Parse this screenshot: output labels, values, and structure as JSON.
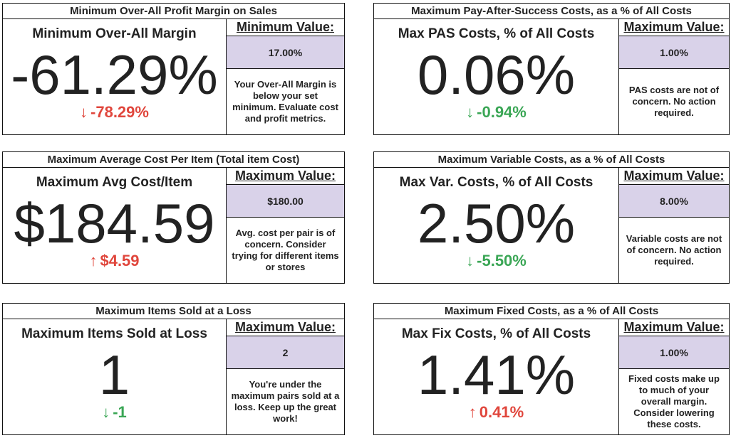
{
  "cards": [
    {
      "header": "Minimum Over-All Profit Margin on Sales",
      "metric": "Minimum Over-All Margin",
      "value": "-61.29%",
      "arrow": "↓",
      "delta": "-78.29%",
      "delta_color": "#e0463c",
      "limit_label": "Minimum Value:",
      "limit": "17.00%",
      "message": "Your Over-All Margin is below your set minimum. Evaluate cost and profit metrics."
    },
    {
      "header": "Maximum Pay-After-Success Costs, as a % of All Costs",
      "metric": "Max PAS Costs, % of All Costs",
      "value": "0.06%",
      "arrow": "↓",
      "delta": "-0.94%",
      "delta_color": "#3aa655",
      "limit_label": "Maximum Value:",
      "limit": "1.00%",
      "message": "PAS costs are not of concern. No action required."
    },
    {
      "header": "Maximum Average Cost Per Item (Total item Cost)",
      "metric": "Maximum Avg Cost/Item",
      "value": "$184.59",
      "arrow": "↑",
      "delta": "$4.59",
      "delta_color": "#e0463c",
      "limit_label": "Maximum Value:",
      "limit": "$180.00",
      "message": "Avg. cost per pair is of concern. Consider trying for different items or stores"
    },
    {
      "header": "Maximum Variable Costs, as a % of All Costs",
      "metric": "Max Var. Costs, % of All Costs",
      "value": "2.50%",
      "arrow": "↓",
      "delta": "-5.50%",
      "delta_color": "#3aa655",
      "limit_label": "Maximum Value:",
      "limit": "8.00%",
      "message": "Variable costs are not of concern. No action required."
    },
    {
      "header": "Maximum Items Sold at a Loss",
      "metric": "Maximum Items Sold at Loss",
      "value": "1",
      "arrow": "↓",
      "delta": "-1",
      "delta_color": "#3aa655",
      "limit_label": "Maximum Value:",
      "limit": "2",
      "message": "You're under the maximum pairs sold at a loss. Keep up the great work!"
    },
    {
      "header": "Maximum Fixed Costs, as a % of All Costs",
      "metric": "Max Fix Costs, % of All Costs",
      "value": "1.41%",
      "arrow": "↑",
      "delta": "0.41%",
      "delta_color": "#e0463c",
      "limit_label": "Maximum Value:",
      "limit": "1.00%",
      "message": "Fixed costs make up to much of your overall margin. Consider lowering these costs."
    }
  ]
}
